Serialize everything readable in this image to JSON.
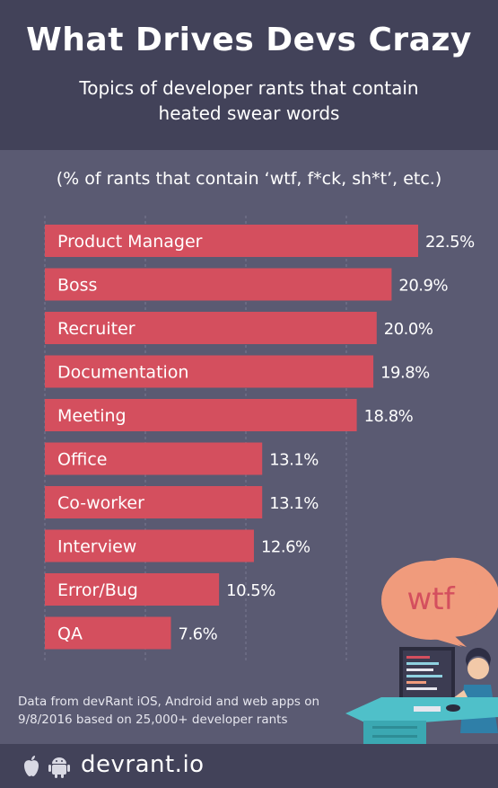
{
  "header": {
    "title": "What Drives Devs Crazy",
    "subtitle": "Topics of developer rants that contain heated swear words"
  },
  "chart_data": {
    "type": "bar",
    "orientation": "horizontal",
    "measure_label": "(% of rants that contain ‘wtf, f*ck, sh*t’, etc.)",
    "categories": [
      "Product Manager",
      "Boss",
      "Recruiter",
      "Documentation",
      "Meeting",
      "Office",
      "Co-worker",
      "Interview",
      "Error/Bug",
      "QA"
    ],
    "values": [
      22.5,
      20.9,
      20.0,
      19.8,
      18.8,
      13.1,
      13.1,
      12.6,
      10.5,
      7.6
    ],
    "value_labels": [
      "22.5%",
      "20.9%",
      "20.0%",
      "19.8%",
      "18.8%",
      "13.1%",
      "13.1%",
      "12.6%",
      "10.5%",
      "7.6%"
    ],
    "xlim": [
      0,
      22.5
    ],
    "grid": true,
    "bar_color": "#d44f5e"
  },
  "illustration": {
    "bubble_text": "wtf"
  },
  "footer": {
    "source": "Data from devRant iOS, Android and web apps on 9/8/2016 based on 25,000+ developer rants",
    "brand": "devrant.io",
    "icons": [
      "apple-icon",
      "android-icon"
    ]
  },
  "colors": {
    "background": "#5a5a72",
    "header": "#424259",
    "bar": "#d44f5e",
    "bubble": "#f09b7c",
    "bubble_text": "#d44f5e"
  }
}
